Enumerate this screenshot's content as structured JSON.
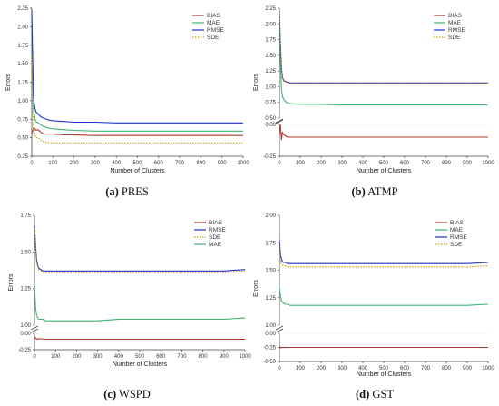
{
  "figure": {
    "captions": [
      {
        "letter": "(a)",
        "name": "PRES"
      },
      {
        "letter": "(b)",
        "name": "ATMP"
      },
      {
        "letter": "(c)",
        "name": "WSPD"
      },
      {
        "letter": "(d)",
        "name": "GST"
      }
    ]
  },
  "chart_data": [
    {
      "type": "line",
      "panel": "a",
      "xlabel": "Number of Clusters",
      "ylabel": "Errors",
      "xlim": [
        0,
        1000
      ],
      "xticks": [
        "0",
        "100",
        "200",
        "300",
        "400",
        "500",
        "600",
        "700",
        "800",
        "900",
        "1000"
      ],
      "broken_axis": false,
      "ylim": [
        0.25,
        2.25
      ],
      "yticks": [
        "0.25",
        "0.50",
        "0.75",
        "1.00",
        "1.25",
        "1.50",
        "1.75",
        "2.00",
        "2.25"
      ],
      "legend_position": "top-right",
      "series": [
        {
          "name": "BIAS",
          "color": "#b03a2e",
          "dash": "solid",
          "x": [
            0,
            5,
            10,
            15,
            20,
            30,
            40,
            50,
            60,
            70,
            80,
            100,
            150,
            200,
            300,
            400,
            500,
            600,
            700,
            800,
            900,
            1000
          ],
          "values": [
            0.55,
            0.6,
            0.64,
            0.62,
            0.6,
            0.61,
            0.58,
            0.56,
            0.55,
            0.55,
            0.55,
            0.55,
            0.54,
            0.54,
            0.53,
            0.53,
            0.53,
            0.53,
            0.53,
            0.53,
            0.53,
            0.53
          ]
        },
        {
          "name": "MAE",
          "color": "#3cb371",
          "dash": "solid",
          "x": [
            0,
            5,
            10,
            15,
            20,
            30,
            40,
            50,
            60,
            70,
            80,
            100,
            150,
            200,
            300,
            400,
            500,
            600,
            700,
            800,
            900,
            1000
          ],
          "values": [
            2.1,
            1.2,
            0.85,
            0.75,
            0.72,
            0.7,
            0.68,
            0.66,
            0.65,
            0.64,
            0.63,
            0.62,
            0.61,
            0.6,
            0.59,
            0.59,
            0.59,
            0.59,
            0.59,
            0.59,
            0.59,
            0.59
          ]
        },
        {
          "name": "RMSE",
          "color": "#1a35c8",
          "dash": "solid",
          "x": [
            0,
            5,
            10,
            15,
            20,
            30,
            40,
            50,
            60,
            70,
            80,
            100,
            150,
            200,
            300,
            400,
            500,
            600,
            700,
            800,
            900,
            1000
          ],
          "values": [
            2.22,
            1.45,
            1.0,
            0.9,
            0.85,
            0.82,
            0.79,
            0.77,
            0.76,
            0.75,
            0.74,
            0.73,
            0.72,
            0.71,
            0.71,
            0.7,
            0.7,
            0.7,
            0.7,
            0.7,
            0.7,
            0.7
          ]
        },
        {
          "name": "SDE",
          "color": "#c8a000",
          "dash": "dotted",
          "x": [
            0,
            5,
            10,
            15,
            20,
            30,
            40,
            50,
            60,
            70,
            80,
            100,
            150,
            200,
            300,
            400,
            500,
            600,
            700,
            800,
            900,
            1000
          ],
          "values": [
            1.6,
            0.9,
            0.62,
            0.55,
            0.5,
            0.5,
            0.48,
            0.45,
            0.44,
            0.44,
            0.43,
            0.43,
            0.43,
            0.43,
            0.43,
            0.43,
            0.43,
            0.43,
            0.43,
            0.43,
            0.43,
            0.43
          ]
        }
      ]
    },
    {
      "type": "line",
      "panel": "b",
      "xlabel": "Number of Clusters",
      "ylabel": "Errors",
      "xlim": [
        0,
        1000
      ],
      "xticks": [
        "0",
        "100",
        "200",
        "300",
        "400",
        "500",
        "600",
        "700",
        "800",
        "900",
        "1000"
      ],
      "broken_axis": true,
      "ylim_upper": [
        0.5,
        2.25
      ],
      "yticks_upper": [
        "0.50",
        "0.75",
        "1.00",
        "1.25",
        "1.50",
        "1.75",
        "2.00",
        "2.25"
      ],
      "ylim_lower": [
        -0.25,
        0.0
      ],
      "yticks_lower": [
        "0.00",
        "-0.25"
      ],
      "legend_position": "top-right",
      "series": [
        {
          "name": "BIAS",
          "color": "#b03a2e",
          "dash": "solid",
          "x": [
            0,
            5,
            10,
            15,
            20,
            30,
            40,
            50,
            100,
            200,
            300,
            400,
            500,
            600,
            700,
            800,
            900,
            1000
          ],
          "values": [
            -0.08,
            0.0,
            -0.12,
            -0.06,
            -0.08,
            -0.09,
            -0.1,
            -0.1,
            -0.1,
            -0.1,
            -0.1,
            -0.1,
            -0.1,
            -0.1,
            -0.1,
            -0.1,
            -0.1,
            -0.1
          ]
        },
        {
          "name": "MAE",
          "color": "#3cb371",
          "dash": "solid",
          "x": [
            0,
            5,
            10,
            15,
            20,
            30,
            40,
            50,
            100,
            200,
            300,
            400,
            500,
            600,
            700,
            800,
            900,
            1000
          ],
          "values": [
            1.95,
            1.4,
            0.95,
            0.85,
            0.8,
            0.76,
            0.74,
            0.73,
            0.72,
            0.72,
            0.71,
            0.71,
            0.71,
            0.71,
            0.71,
            0.71,
            0.71,
            0.71
          ]
        },
        {
          "name": "RMSE",
          "color": "#1a35c8",
          "dash": "solid",
          "x": [
            0,
            5,
            10,
            15,
            20,
            30,
            40,
            50,
            100,
            200,
            300,
            400,
            500,
            600,
            700,
            800,
            900,
            1000
          ],
          "values": [
            2.2,
            1.7,
            1.3,
            1.15,
            1.1,
            1.08,
            1.07,
            1.06,
            1.06,
            1.06,
            1.06,
            1.06,
            1.06,
            1.06,
            1.06,
            1.06,
            1.06,
            1.06
          ]
        },
        {
          "name": "SDE",
          "color": "#c8a000",
          "dash": "dotted",
          "x": [
            0,
            5,
            10,
            15,
            20,
            30,
            40,
            50,
            100,
            200,
            300,
            400,
            500,
            600,
            700,
            800,
            900,
            1000
          ],
          "values": [
            2.18,
            1.68,
            1.28,
            1.13,
            1.09,
            1.07,
            1.06,
            1.05,
            1.05,
            1.05,
            1.05,
            1.05,
            1.05,
            1.05,
            1.05,
            1.05,
            1.05,
            1.05
          ]
        }
      ]
    },
    {
      "type": "line",
      "panel": "c",
      "xlabel": "Number of Clusters",
      "ylabel": "Errors",
      "xlim": [
        0,
        1000
      ],
      "xticks": [
        "0",
        "100",
        "200",
        "300",
        "400",
        "500",
        "600",
        "700",
        "800",
        "900",
        "1000"
      ],
      "broken_axis": true,
      "ylim_upper": [
        1.0,
        1.75
      ],
      "yticks_upper": [
        "1.00",
        "1.25",
        "1.50",
        "1.75"
      ],
      "ylim_lower": [
        -0.25,
        0.0
      ],
      "yticks_lower": [
        "0.00",
        "-0.25"
      ],
      "legend_position": "top-right",
      "series": [
        {
          "name": "BIAS",
          "color": "#b03a2e",
          "dash": "solid",
          "x": [
            0,
            5,
            10,
            20,
            50,
            100,
            200,
            300,
            400,
            500,
            600,
            700,
            800,
            900,
            1000
          ],
          "values": [
            -0.05,
            -0.07,
            -0.09,
            -0.08,
            -0.09,
            -0.09,
            -0.09,
            -0.09,
            -0.09,
            -0.09,
            -0.09,
            -0.09,
            -0.09,
            -0.09,
            -0.09
          ]
        },
        {
          "name": "RMSE",
          "color": "#1a35c8",
          "dash": "solid",
          "x": [
            0,
            5,
            10,
            15,
            20,
            30,
            40,
            50,
            100,
            200,
            300,
            400,
            500,
            600,
            700,
            800,
            900,
            1000
          ],
          "values": [
            1.68,
            1.55,
            1.45,
            1.41,
            1.39,
            1.38,
            1.37,
            1.37,
            1.37,
            1.37,
            1.37,
            1.37,
            1.37,
            1.37,
            1.37,
            1.37,
            1.37,
            1.38
          ]
        },
        {
          "name": "SDE",
          "color": "#c8a000",
          "dash": "dotted",
          "x": [
            0,
            5,
            10,
            15,
            20,
            30,
            40,
            50,
            100,
            200,
            300,
            400,
            500,
            600,
            700,
            800,
            900,
            1000
          ],
          "values": [
            1.66,
            1.53,
            1.43,
            1.4,
            1.38,
            1.37,
            1.36,
            1.36,
            1.36,
            1.36,
            1.36,
            1.36,
            1.36,
            1.36,
            1.36,
            1.36,
            1.36,
            1.37
          ]
        },
        {
          "name": "MAE",
          "color": "#3cb371",
          "dash": "solid",
          "x": [
            0,
            5,
            10,
            15,
            20,
            30,
            40,
            50,
            100,
            200,
            300,
            400,
            500,
            600,
            700,
            800,
            900,
            1000
          ],
          "values": [
            1.27,
            1.12,
            1.07,
            1.05,
            1.04,
            1.04,
            1.04,
            1.03,
            1.03,
            1.03,
            1.03,
            1.04,
            1.04,
            1.04,
            1.04,
            1.04,
            1.04,
            1.05
          ]
        }
      ]
    },
    {
      "type": "line",
      "panel": "d",
      "xlabel": "Number of Clusters",
      "ylabel": "Errors",
      "xlim": [
        0,
        1000
      ],
      "xticks": [
        "0",
        "100",
        "200",
        "300",
        "400",
        "500",
        "600",
        "700",
        "800",
        "900",
        "1000"
      ],
      "broken_axis": true,
      "ylim_upper": [
        1.0,
        2.0
      ],
      "yticks_upper": [
        "1.00",
        "1.25",
        "1.50",
        "1.75",
        "2.00"
      ],
      "ylim_lower": [
        -0.5,
        0.0
      ],
      "yticks_lower": [
        "0.00",
        "-0.25",
        "-0.50"
      ],
      "legend_position": "top-right",
      "series": [
        {
          "name": "BIAS",
          "color": "#b03a2e",
          "dash": "solid",
          "x": [
            0,
            5,
            10,
            50,
            100,
            200,
            300,
            400,
            500,
            600,
            700,
            800,
            900,
            1000
          ],
          "values": [
            -0.22,
            -0.26,
            -0.25,
            -0.25,
            -0.25,
            -0.25,
            -0.25,
            -0.25,
            -0.25,
            -0.25,
            -0.25,
            -0.25,
            -0.25,
            -0.25
          ]
        },
        {
          "name": "MAE",
          "color": "#3cb371",
          "dash": "solid",
          "x": [
            0,
            5,
            10,
            15,
            20,
            30,
            40,
            50,
            100,
            200,
            300,
            400,
            500,
            600,
            700,
            800,
            900,
            1000
          ],
          "values": [
            1.35,
            1.27,
            1.22,
            1.21,
            1.2,
            1.19,
            1.19,
            1.18,
            1.18,
            1.18,
            1.18,
            1.18,
            1.18,
            1.18,
            1.18,
            1.18,
            1.18,
            1.19
          ]
        },
        {
          "name": "RMSE",
          "color": "#1a35c8",
          "dash": "solid",
          "x": [
            0,
            5,
            10,
            15,
            20,
            30,
            40,
            50,
            100,
            200,
            300,
            400,
            500,
            600,
            700,
            800,
            900,
            1000
          ],
          "values": [
            1.78,
            1.65,
            1.6,
            1.58,
            1.57,
            1.57,
            1.56,
            1.56,
            1.56,
            1.56,
            1.56,
            1.56,
            1.56,
            1.56,
            1.56,
            1.56,
            1.56,
            1.57
          ]
        },
        {
          "name": "SDE",
          "color": "#c8a000",
          "dash": "dotted",
          "x": [
            0,
            5,
            10,
            15,
            20,
            30,
            40,
            50,
            100,
            200,
            300,
            400,
            500,
            600,
            700,
            800,
            900,
            1000
          ],
          "values": [
            1.72,
            1.6,
            1.56,
            1.55,
            1.54,
            1.54,
            1.53,
            1.53,
            1.53,
            1.53,
            1.53,
            1.53,
            1.53,
            1.53,
            1.53,
            1.53,
            1.53,
            1.54
          ]
        }
      ]
    }
  ]
}
